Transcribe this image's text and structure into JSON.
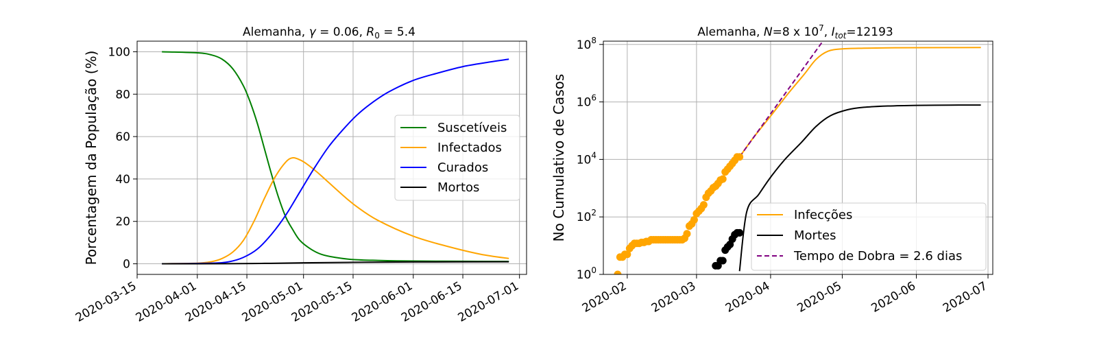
{
  "chart_data": [
    {
      "type": "line",
      "title": "Alemanha, γ = 0.06, R₀ = 5.4",
      "title_parts": {
        "prefix": "Alemanha, ",
        "gamma": "γ",
        "gamma_val": " = 0.06, ",
        "r": "R",
        "r_sub": "0",
        "r_val": " = 5.4"
      },
      "xlabel": "",
      "ylabel": "Porcentagem da População (%)",
      "x_axis": "date",
      "xlim": [
        "2020-03-15",
        "2020-07-03"
      ],
      "ylim": [
        -5,
        105
      ],
      "x_ticks": [
        "2020-03-15",
        "2020-04-01",
        "2020-04-15",
        "2020-05-01",
        "2020-05-15",
        "2020-06-01",
        "2020-06-15",
        "2020-07-01"
      ],
      "y_ticks": [
        0,
        20,
        40,
        60,
        80,
        100
      ],
      "grid": true,
      "legend_position": "center-right",
      "series": [
        {
          "name": "Suscetíveis",
          "color": "#008000",
          "x": [
            "2020-03-22",
            "2020-04-01",
            "2020-04-05",
            "2020-04-08",
            "2020-04-11",
            "2020-04-14",
            "2020-04-16",
            "2020-04-18",
            "2020-04-20",
            "2020-04-22",
            "2020-04-24",
            "2020-04-26",
            "2020-04-28",
            "2020-04-30",
            "2020-05-03",
            "2020-05-06",
            "2020-05-10",
            "2020-05-15",
            "2020-05-22",
            "2020-06-01",
            "2020-06-15",
            "2020-06-28"
          ],
          "y": [
            100,
            99.5,
            98.5,
            96.5,
            92,
            84,
            76,
            66,
            54,
            42,
            31,
            22,
            16,
            11,
            7,
            4.5,
            3,
            2,
            1.6,
            1.3,
            1.2,
            1.1
          ]
        },
        {
          "name": "Infectados",
          "color": "#FFA500",
          "x": [
            "2020-03-22",
            "2020-04-01",
            "2020-04-05",
            "2020-04-08",
            "2020-04-11",
            "2020-04-14",
            "2020-04-17",
            "2020-04-20",
            "2020-04-23",
            "2020-04-26",
            "2020-04-28",
            "2020-04-30",
            "2020-05-02",
            "2020-05-05",
            "2020-05-08",
            "2020-05-12",
            "2020-05-16",
            "2020-05-22",
            "2020-06-01",
            "2020-06-10",
            "2020-06-20",
            "2020-06-28"
          ],
          "y": [
            0,
            0.3,
            1,
            2.5,
            5.5,
            11,
            20,
            31,
            41,
            48,
            50,
            49,
            47,
            43,
            38.5,
            32.5,
            27,
            20.5,
            13,
            8.5,
            4.5,
            2.5
          ]
        },
        {
          "name": "Curados",
          "color": "#0000FF",
          "x": [
            "2020-03-22",
            "2020-04-05",
            "2020-04-10",
            "2020-04-14",
            "2020-04-18",
            "2020-04-22",
            "2020-04-26",
            "2020-04-30",
            "2020-05-04",
            "2020-05-08",
            "2020-05-12",
            "2020-05-16",
            "2020-05-20",
            "2020-05-25",
            "2020-06-01",
            "2020-06-08",
            "2020-06-15",
            "2020-06-22",
            "2020-06-28"
          ],
          "y": [
            0,
            0.3,
            1,
            3,
            7,
            14,
            23,
            34,
            45,
            55,
            63,
            70,
            75.5,
            81,
            86.5,
            90,
            93,
            95,
            96.5
          ]
        },
        {
          "name": "Mortos",
          "color": "#000000",
          "x": [
            "2020-03-22",
            "2020-04-10",
            "2020-04-20",
            "2020-05-01",
            "2020-05-15",
            "2020-06-01",
            "2020-06-28"
          ],
          "y": [
            0,
            0.05,
            0.2,
            0.45,
            0.7,
            0.85,
            0.95
          ]
        }
      ]
    },
    {
      "type": "line",
      "title": "Alemanha, N=8 x 10⁷, I_tot=12193",
      "title_parts": {
        "prefix": "Alemanha, ",
        "n": "N",
        "n_val": "=8 x 10",
        "n_exp": "7",
        "sep": ", ",
        "i": "I",
        "i_sub": "tot",
        "i_val": "=12193"
      },
      "xlabel": "",
      "ylabel": "No Cumulativo de Casos",
      "x_axis": "date",
      "y_scale": "log",
      "xlim": [
        "2020-01-22",
        "2020-07-03"
      ],
      "ylim": [
        1,
        130000000
      ],
      "x_ticks": [
        "2020-02",
        "2020-03",
        "2020-04",
        "2020-05",
        "2020-06",
        "2020-07"
      ],
      "x_tick_dates": [
        "2020-02-01",
        "2020-03-01",
        "2020-04-01",
        "2020-05-01",
        "2020-06-01",
        "2020-07-01"
      ],
      "y_ticks": [
        1,
        100,
        10000,
        1000000,
        100000000
      ],
      "y_tick_labels": [
        {
          "base": "10",
          "exp": "0"
        },
        {
          "base": "10",
          "exp": "2"
        },
        {
          "base": "10",
          "exp": "4"
        },
        {
          "base": "10",
          "exp": "6"
        },
        {
          "base": "10",
          "exp": "8"
        }
      ],
      "grid": true,
      "legend_position": "lower-right",
      "series": [
        {
          "name": "Infecções",
          "color": "#FFA500",
          "style": "line",
          "x": [
            "2020-03-19",
            "2020-03-25",
            "2020-04-01",
            "2020-04-08",
            "2020-04-15",
            "2020-04-20",
            "2020-04-25",
            "2020-05-01",
            "2020-05-10",
            "2020-05-20",
            "2020-06-01",
            "2020-06-28"
          ],
          "y": [
            12193,
            60000,
            320000,
            1800000,
            9000000,
            30000000,
            58000000,
            70000000,
            74000000,
            76000000,
            77000000,
            78000000
          ]
        },
        {
          "name": "Mortes",
          "color": "#000000",
          "style": "line",
          "x": [
            "2020-03-19",
            "2020-03-22",
            "2020-03-27",
            "2020-04-01",
            "2020-04-07",
            "2020-04-14",
            "2020-04-20",
            "2020-04-26",
            "2020-05-03",
            "2020-05-10",
            "2020-05-20",
            "2020-06-01",
            "2020-06-15",
            "2020-06-28"
          ],
          "y": [
            1.3,
            150,
            600,
            2400,
            10000,
            40000,
            140000,
            330000,
            530000,
            650000,
            720000,
            760000,
            775000,
            780000
          ]
        },
        {
          "name": "Tempo de Dobra = 2.6 dias",
          "color": "#800080",
          "style": "dashed",
          "x": [
            "2020-03-19",
            "2020-04-25"
          ],
          "y": [
            12193,
            229000000
          ]
        },
        {
          "name": "",
          "color": "#FFA500",
          "style": "points",
          "x": [
            "2020-01-28",
            "2020-01-29",
            "2020-01-30",
            "2020-01-31",
            "2020-02-01",
            "2020-02-02",
            "2020-02-03",
            "2020-02-04",
            "2020-02-05",
            "2020-02-06",
            "2020-02-07",
            "2020-02-08",
            "2020-02-09",
            "2020-02-10",
            "2020-02-11",
            "2020-02-12",
            "2020-02-13",
            "2020-02-14",
            "2020-02-15",
            "2020-02-16",
            "2020-02-17",
            "2020-02-18",
            "2020-02-19",
            "2020-02-20",
            "2020-02-21",
            "2020-02-22",
            "2020-02-23",
            "2020-02-24",
            "2020-02-25",
            "2020-02-26",
            "2020-02-27",
            "2020-02-28",
            "2020-02-29",
            "2020-03-01",
            "2020-03-02",
            "2020-03-03",
            "2020-03-04",
            "2020-03-05",
            "2020-03-06",
            "2020-03-07",
            "2020-03-08",
            "2020-03-09",
            "2020-03-10",
            "2020-03-11",
            "2020-03-12",
            "2020-03-13",
            "2020-03-14",
            "2020-03-15",
            "2020-03-16",
            "2020-03-17",
            "2020-03-18",
            "2020-03-19"
          ],
          "y": [
            1,
            4,
            4,
            5,
            5,
            8,
            10,
            12,
            12,
            12,
            13,
            13,
            14,
            14,
            16,
            16,
            16,
            16,
            16,
            16,
            16,
            16,
            16,
            16,
            16,
            16,
            16,
            16,
            18,
            26,
            48,
            57,
            79,
            130,
            159,
            196,
            262,
            482,
            670,
            799,
            1040,
            1176,
            1457,
            1908,
            2078,
            3675,
            4585,
            5795,
            7272,
            9257,
            12193,
            12193
          ]
        },
        {
          "name": "",
          "color": "#000000",
          "style": "points",
          "x": [
            "2020-03-09",
            "2020-03-10",
            "2020-03-11",
            "2020-03-12",
            "2020-03-13",
            "2020-03-14",
            "2020-03-15",
            "2020-03-16",
            "2020-03-17",
            "2020-03-18",
            "2020-03-19"
          ],
          "y": [
            2,
            2,
            3,
            3,
            7,
            9,
            11,
            17,
            24,
            28,
            28
          ]
        }
      ]
    }
  ]
}
